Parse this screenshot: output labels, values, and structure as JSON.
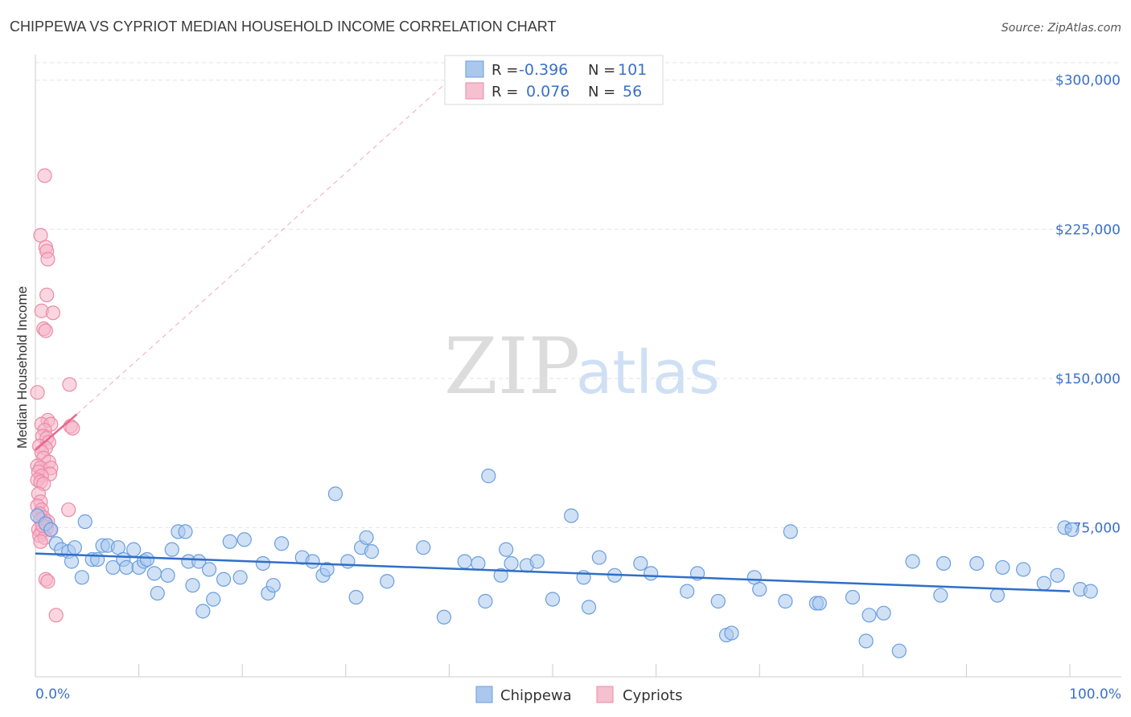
{
  "header": {
    "title": "CHIPPEWA VS CYPRIOT MEDIAN HOUSEHOLD INCOME CORRELATION CHART",
    "source": "Source: ZipAtlas.com"
  },
  "watermark": {
    "zip": "ZIP",
    "atlas": "atlas"
  },
  "colors": {
    "blue_fill": "#aac8ee",
    "blue_stroke": "#6a9ede",
    "blue_line": "#2f6fc8",
    "pink_fill": "#f5b4c8",
    "pink_stroke": "#ec8aa8",
    "pink_line": "#e8678e",
    "grid": "#e3e3e3",
    "axis": "#cccccc",
    "tick_text": "#3a70c8"
  },
  "legend": {
    "rows": [
      {
        "r_label": "R =",
        "r_value": "-0.396",
        "n_label": "N =",
        "n_value": "101",
        "color": "blue"
      },
      {
        "r_label": "R =",
        "r_value": "0.076",
        "n_label": "N =",
        "n_value": "56",
        "color": "pink"
      }
    ]
  },
  "bottom_legend": {
    "series1": "Chippewa",
    "series2": "Cypriots"
  },
  "chart_data": {
    "type": "scatter",
    "title": "CHIPPEWA VS CYPRIOT MEDIAN HOUSEHOLD INCOME CORRELATION CHART",
    "xlabel": "",
    "ylabel": "Median Household Income",
    "xlim": [
      0,
      100
    ],
    "ylim": [
      0,
      310000
    ],
    "x_tick_labels": [
      "0.0%",
      "100.0%"
    ],
    "y_ticks": [
      75000,
      150000,
      225000,
      300000
    ],
    "y_tick_labels": [
      "$75,000",
      "$150,000",
      "$225,000",
      "$300,000"
    ],
    "grid": true,
    "series": [
      {
        "name": "Chippewa",
        "color": "blue",
        "trend": {
          "x": [
            0,
            100
          ],
          "y": [
            62000,
            43000
          ]
        },
        "points": [
          [
            0.2,
            81000
          ],
          [
            1.0,
            77000
          ],
          [
            1.5,
            74000
          ],
          [
            2.0,
            67000
          ],
          [
            2.5,
            64000
          ],
          [
            3.2,
            63000
          ],
          [
            3.5,
            58000
          ],
          [
            3.8,
            65000
          ],
          [
            4.5,
            50000
          ],
          [
            4.8,
            78000
          ],
          [
            5.5,
            59000
          ],
          [
            6.0,
            59000
          ],
          [
            6.5,
            66000
          ],
          [
            7.0,
            66000
          ],
          [
            7.5,
            55000
          ],
          [
            8.0,
            65000
          ],
          [
            8.5,
            59000
          ],
          [
            8.8,
            55000
          ],
          [
            9.5,
            64000
          ],
          [
            10.0,
            55000
          ],
          [
            10.5,
            58000
          ],
          [
            10.8,
            59000
          ],
          [
            11.5,
            52000
          ],
          [
            11.8,
            42000
          ],
          [
            12.8,
            51000
          ],
          [
            13.2,
            64000
          ],
          [
            13.8,
            73000
          ],
          [
            14.5,
            73000
          ],
          [
            14.8,
            58000
          ],
          [
            15.2,
            46000
          ],
          [
            15.8,
            58000
          ],
          [
            16.2,
            33000
          ],
          [
            16.8,
            54000
          ],
          [
            17.2,
            39000
          ],
          [
            18.2,
            49000
          ],
          [
            18.8,
            68000
          ],
          [
            19.8,
            50000
          ],
          [
            20.2,
            69000
          ],
          [
            22.0,
            57000
          ],
          [
            22.5,
            42000
          ],
          [
            23.0,
            46000
          ],
          [
            23.8,
            67000
          ],
          [
            25.8,
            60000
          ],
          [
            26.8,
            58000
          ],
          [
            27.8,
            51000
          ],
          [
            28.2,
            54000
          ],
          [
            29.0,
            92000
          ],
          [
            30.2,
            58000
          ],
          [
            31.0,
            40000
          ],
          [
            31.5,
            65000
          ],
          [
            32.0,
            70000
          ],
          [
            32.5,
            63000
          ],
          [
            34.0,
            48000
          ],
          [
            37.5,
            65000
          ],
          [
            39.5,
            30000
          ],
          [
            41.5,
            58000
          ],
          [
            42.8,
            57000
          ],
          [
            43.5,
            38000
          ],
          [
            43.8,
            101000
          ],
          [
            45.0,
            51000
          ],
          [
            45.5,
            64000
          ],
          [
            46.0,
            57000
          ],
          [
            47.5,
            56000
          ],
          [
            48.5,
            58000
          ],
          [
            50.0,
            39000
          ],
          [
            51.8,
            81000
          ],
          [
            53.0,
            50000
          ],
          [
            53.5,
            35000
          ],
          [
            54.5,
            60000
          ],
          [
            56.0,
            51000
          ],
          [
            58.5,
            57000
          ],
          [
            59.5,
            52000
          ],
          [
            63.0,
            43000
          ],
          [
            64.0,
            52000
          ],
          [
            66.0,
            38000
          ],
          [
            66.8,
            21000
          ],
          [
            67.3,
            22000
          ],
          [
            69.5,
            50000
          ],
          [
            70.0,
            44000
          ],
          [
            72.5,
            38000
          ],
          [
            73.0,
            73000
          ],
          [
            75.5,
            37000
          ],
          [
            75.8,
            37000
          ],
          [
            79.0,
            40000
          ],
          [
            80.3,
            18000
          ],
          [
            80.6,
            31000
          ],
          [
            82.0,
            32000
          ],
          [
            83.5,
            13000
          ],
          [
            84.8,
            58000
          ],
          [
            87.5,
            41000
          ],
          [
            87.8,
            57000
          ],
          [
            91.0,
            57000
          ],
          [
            93.0,
            41000
          ],
          [
            93.5,
            55000
          ],
          [
            95.5,
            54000
          ],
          [
            97.5,
            47000
          ],
          [
            98.8,
            51000
          ],
          [
            99.5,
            75000
          ],
          [
            100.2,
            74000
          ],
          [
            101.0,
            44000
          ],
          [
            102.0,
            43000
          ]
        ]
      },
      {
        "name": "Cypriots",
        "color": "pink",
        "trend": {
          "x": [
            0,
            4.0
          ],
          "y": [
            114000,
            132000
          ]
        },
        "trend_extension": {
          "x": [
            4.0,
            40.0
          ],
          "y": [
            132000,
            300000
          ]
        },
        "points": [
          [
            0.9,
            252000
          ],
          [
            0.5,
            222000
          ],
          [
            1.0,
            216000
          ],
          [
            1.1,
            214000
          ],
          [
            1.2,
            210000
          ],
          [
            1.1,
            192000
          ],
          [
            0.6,
            184000
          ],
          [
            1.7,
            183000
          ],
          [
            0.8,
            175000
          ],
          [
            1.0,
            174000
          ],
          [
            3.3,
            147000
          ],
          [
            0.2,
            143000
          ],
          [
            1.2,
            129000
          ],
          [
            0.6,
            127000
          ],
          [
            1.5,
            127000
          ],
          [
            3.4,
            126000
          ],
          [
            3.6,
            125000
          ],
          [
            0.9,
            124000
          ],
          [
            0.7,
            121000
          ],
          [
            1.1,
            120000
          ],
          [
            1.3,
            118000
          ],
          [
            0.4,
            116000
          ],
          [
            1.0,
            115000
          ],
          [
            0.6,
            113000
          ],
          [
            0.8,
            110000
          ],
          [
            1.3,
            108000
          ],
          [
            0.2,
            106000
          ],
          [
            0.5,
            105000
          ],
          [
            1.5,
            105000
          ],
          [
            0.3,
            103000
          ],
          [
            1.4,
            102000
          ],
          [
            0.6,
            101000
          ],
          [
            0.2,
            99000
          ],
          [
            0.5,
            98000
          ],
          [
            0.8,
            97000
          ],
          [
            0.3,
            92000
          ],
          [
            0.5,
            88000
          ],
          [
            0.2,
            86000
          ],
          [
            0.6,
            84000
          ],
          [
            3.2,
            84000
          ],
          [
            0.4,
            82000
          ],
          [
            0.8,
            80000
          ],
          [
            0.5,
            79000
          ],
          [
            1.2,
            78000
          ],
          [
            0.9,
            77000
          ],
          [
            1.1,
            75000
          ],
          [
            0.3,
            74000
          ],
          [
            1.4,
            74000
          ],
          [
            0.6,
            73000
          ],
          [
            0.4,
            71000
          ],
          [
            0.9,
            70000
          ],
          [
            0.5,
            68000
          ],
          [
            1.0,
            49000
          ],
          [
            1.2,
            48000
          ],
          [
            2.0,
            31000
          ],
          [
            0.7,
            76000
          ]
        ]
      }
    ]
  }
}
